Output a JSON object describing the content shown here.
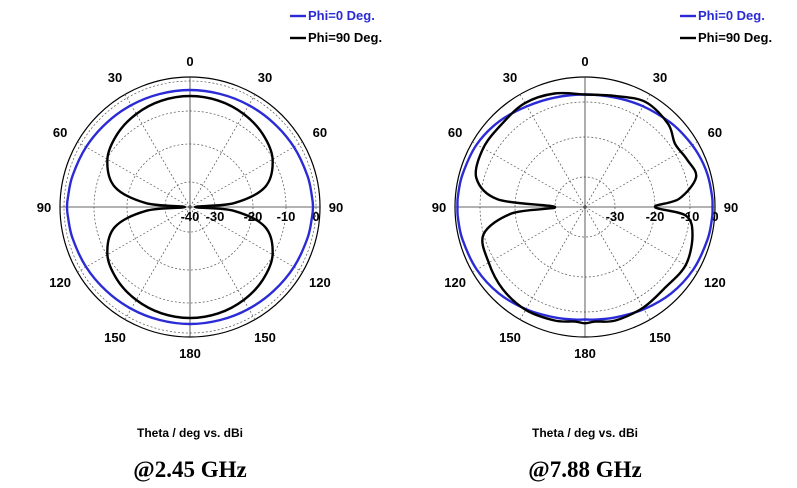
{
  "colors": {
    "phi0": "#2b2bd6",
    "phi90": "#000000",
    "grid": "#555555"
  },
  "chart_data": [
    {
      "type": "polar",
      "caption": "@2.45 GHz",
      "xlabel": "Theta / deg vs. dBi",
      "angle_labels": [
        "0",
        "30",
        "60",
        "90",
        "120",
        "150",
        "180",
        "150",
        "120",
        "90",
        "60",
        "30"
      ],
      "radial_ticks": [
        -40,
        -30,
        -20,
        -10,
        0
      ],
      "radial_labels": [
        "-40",
        "-30",
        "-20",
        "-10",
        "0"
      ],
      "rlim": [
        -45,
        0
      ],
      "angles_deg": [
        0,
        15,
        30,
        45,
        60,
        75,
        85,
        90,
        95,
        105,
        120,
        135,
        150,
        165,
        180,
        195,
        210,
        225,
        240,
        255,
        265,
        270,
        275,
        285,
        300,
        315,
        330,
        345
      ],
      "series": [
        {
          "name": "Phi=0 Deg.",
          "color": "blue",
          "values": [
            -3,
            -3,
            -2.8,
            -2.5,
            -2,
            -1.5,
            -1.2,
            -1,
            -1.2,
            -1.5,
            -2,
            -2.5,
            -2.8,
            -3,
            -3,
            -3,
            -2.8,
            -2.5,
            -2,
            -1.5,
            -1.2,
            -1,
            -1.2,
            -1.5,
            -2,
            -2.5,
            -2.8,
            -3
          ]
        },
        {
          "name": "Phi=90 Deg.",
          "color": "black",
          "values": [
            -5,
            -5.3,
            -6.2,
            -7.7,
            -10.2,
            -15.5,
            -25,
            -38,
            -25,
            -15.5,
            -10.2,
            -7.7,
            -6.2,
            -5.3,
            -5,
            -5.3,
            -6.2,
            -7.7,
            -10.2,
            -15.5,
            -25,
            -38,
            -25,
            -15.5,
            -10.2,
            -7.7,
            -6.2,
            -5.3
          ]
        }
      ]
    },
    {
      "type": "polar",
      "caption": "@7.88 GHz",
      "xlabel": "Theta / deg vs. dBi",
      "angle_labels": [
        "0",
        "30",
        "60",
        "90",
        "120",
        "150",
        "180",
        "150",
        "120",
        "90",
        "60",
        "30"
      ],
      "radial_ticks": [
        -30,
        -20,
        -10,
        0
      ],
      "radial_labels": [
        "-30",
        "-20",
        "-10",
        "0"
      ],
      "rlim": [
        -35,
        5
      ],
      "angles_deg": [
        0,
        15,
        30,
        45,
        55,
        65,
        75,
        85,
        90,
        95,
        105,
        120,
        135,
        150,
        165,
        175,
        180,
        185,
        195,
        210,
        225,
        240,
        255,
        265,
        270,
        275,
        285,
        300,
        315,
        330,
        345
      ],
      "series": [
        {
          "name": "Phi=0 Deg.",
          "color": "blue",
          "values": [
            -7,
            -6.6,
            -5.5,
            -4,
            -3,
            -2,
            -1.3,
            -1,
            -1,
            -1,
            -1.3,
            -2,
            -3.2,
            -4.8,
            -6.2,
            -6.8,
            -7,
            -6.8,
            -6.2,
            -4.8,
            -3.2,
            -2,
            -1.3,
            -1,
            -1,
            -1,
            -1.3,
            -2,
            -3.5,
            -5.5,
            -6.6
          ]
        },
        {
          "name": "Phi=90 Deg.",
          "color": "black",
          "values": [
            -7,
            -6,
            -3.5,
            -5,
            -8,
            -7,
            -6,
            -13,
            -20,
            -11,
            -7.5,
            -5.5,
            -6.5,
            -5.5,
            -5,
            -6,
            -5.5,
            -6,
            -5,
            -4.5,
            -5.5,
            -7.5,
            -10,
            -19,
            -33,
            -15,
            -7,
            -5,
            -5,
            -4,
            -5
          ]
        }
      ]
    }
  ]
}
